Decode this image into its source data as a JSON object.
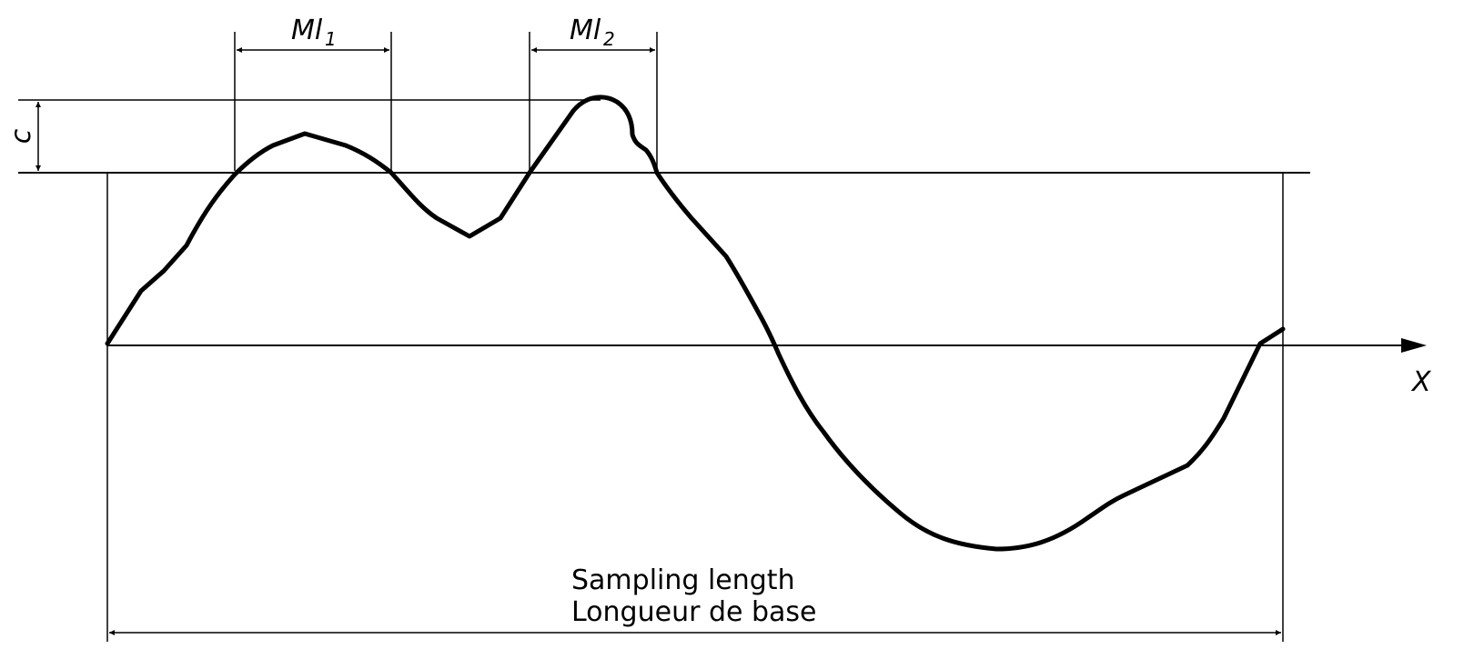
{
  "labels": {
    "ml1": "Ml",
    "ml1_sub": "1",
    "ml2": "Ml",
    "ml2_sub": "2",
    "c": "c",
    "x_axis": "X",
    "sampling_length_en": "Sampling length",
    "sampling_length_fr": "Longueur de base"
  },
  "colors": {
    "ink": "#000000",
    "background": "#ffffff"
  }
}
